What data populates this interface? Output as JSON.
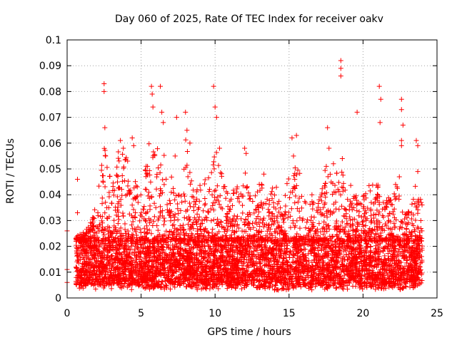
{
  "chart_data": {
    "type": "scatter",
    "title": "Day 060 of 2025, Rate Of TEC Index for receiver oakv",
    "xlabel": "GPS time / hours",
    "ylabel": "ROTI / TECUs",
    "xlim": [
      0,
      25
    ],
    "ylim": [
      0,
      0.1
    ],
    "grid": true,
    "marker": "+",
    "color": "#ff0000",
    "x_ticks": [
      0,
      5,
      10,
      15,
      20,
      25
    ],
    "x_tick_labels": [
      "0",
      "5",
      "10",
      "15",
      "20",
      "25"
    ],
    "y_ticks": [
      0,
      0.01,
      0.02,
      0.03,
      0.04,
      0.05,
      0.06,
      0.07,
      0.08,
      0.09,
      0.1
    ],
    "y_tick_labels": [
      "0",
      "0.01",
      "0.02",
      "0.03",
      "0.04",
      "0.05",
      "0.06",
      "0.07",
      "0.08",
      "0.09",
      "0.1"
    ],
    "series": [
      {
        "name": "ROTI",
        "x_range": [
          0,
          24
        ],
        "baseline_band": [
          0.005,
          0.022
        ],
        "notable_points": [
          {
            "x": 0.0,
            "y": 0.026
          },
          {
            "x": 0.0,
            "y": 0.011
          },
          {
            "x": 0.0,
            "y": 0.006
          },
          {
            "x": 0.7,
            "y": 0.046
          },
          {
            "x": 0.7,
            "y": 0.033
          },
          {
            "x": 2.5,
            "y": 0.083
          },
          {
            "x": 2.5,
            "y": 0.08
          },
          {
            "x": 2.55,
            "y": 0.066
          },
          {
            "x": 2.6,
            "y": 0.055
          },
          {
            "x": 3.6,
            "y": 0.061
          },
          {
            "x": 3.8,
            "y": 0.058
          },
          {
            "x": 4.4,
            "y": 0.062
          },
          {
            "x": 4.5,
            "y": 0.059
          },
          {
            "x": 5.7,
            "y": 0.082
          },
          {
            "x": 5.75,
            "y": 0.079
          },
          {
            "x": 5.8,
            "y": 0.074
          },
          {
            "x": 6.3,
            "y": 0.082
          },
          {
            "x": 6.4,
            "y": 0.072
          },
          {
            "x": 6.5,
            "y": 0.068
          },
          {
            "x": 7.3,
            "y": 0.055
          },
          {
            "x": 7.4,
            "y": 0.07
          },
          {
            "x": 8.0,
            "y": 0.072
          },
          {
            "x": 8.1,
            "y": 0.065
          },
          {
            "x": 8.3,
            "y": 0.06
          },
          {
            "x": 9.9,
            "y": 0.082
          },
          {
            "x": 10.0,
            "y": 0.074
          },
          {
            "x": 10.1,
            "y": 0.07
          },
          {
            "x": 10.3,
            "y": 0.058
          },
          {
            "x": 12.0,
            "y": 0.058
          },
          {
            "x": 12.1,
            "y": 0.056
          },
          {
            "x": 13.3,
            "y": 0.048
          },
          {
            "x": 15.2,
            "y": 0.062
          },
          {
            "x": 15.3,
            "y": 0.055
          },
          {
            "x": 15.5,
            "y": 0.063
          },
          {
            "x": 17.6,
            "y": 0.066
          },
          {
            "x": 17.7,
            "y": 0.058
          },
          {
            "x": 18.0,
            "y": 0.052
          },
          {
            "x": 18.5,
            "y": 0.092
          },
          {
            "x": 18.5,
            "y": 0.089
          },
          {
            "x": 18.5,
            "y": 0.086
          },
          {
            "x": 18.6,
            "y": 0.054
          },
          {
            "x": 19.6,
            "y": 0.072
          },
          {
            "x": 21.1,
            "y": 0.082
          },
          {
            "x": 21.2,
            "y": 0.077
          },
          {
            "x": 21.15,
            "y": 0.068
          },
          {
            "x": 22.2,
            "y": 0.044
          },
          {
            "x": 22.6,
            "y": 0.077
          },
          {
            "x": 22.6,
            "y": 0.073
          },
          {
            "x": 22.7,
            "y": 0.067
          },
          {
            "x": 22.6,
            "y": 0.061
          },
          {
            "x": 22.6,
            "y": 0.059
          },
          {
            "x": 23.6,
            "y": 0.061
          },
          {
            "x": 23.7,
            "y": 0.059
          },
          {
            "x": 23.7,
            "y": 0.049
          }
        ],
        "peak_envelope": [
          {
            "x": 0.6,
            "y": 0.024
          },
          {
            "x": 1.0,
            "y": 0.025
          },
          {
            "x": 1.5,
            "y": 0.028
          },
          {
            "x": 2.0,
            "y": 0.038
          },
          {
            "x": 2.5,
            "y": 0.06
          },
          {
            "x": 3.0,
            "y": 0.045
          },
          {
            "x": 3.5,
            "y": 0.058
          },
          {
            "x": 4.0,
            "y": 0.055
          },
          {
            "x": 4.5,
            "y": 0.05
          },
          {
            "x": 5.0,
            "y": 0.04
          },
          {
            "x": 5.5,
            "y": 0.06
          },
          {
            "x": 6.0,
            "y": 0.058
          },
          {
            "x": 6.5,
            "y": 0.06
          },
          {
            "x": 7.0,
            "y": 0.048
          },
          {
            "x": 7.5,
            "y": 0.045
          },
          {
            "x": 8.0,
            "y": 0.062
          },
          {
            "x": 8.5,
            "y": 0.042
          },
          {
            "x": 9.0,
            "y": 0.048
          },
          {
            "x": 9.5,
            "y": 0.045
          },
          {
            "x": 10.0,
            "y": 0.06
          },
          {
            "x": 10.5,
            "y": 0.048
          },
          {
            "x": 11.0,
            "y": 0.04
          },
          {
            "x": 11.5,
            "y": 0.045
          },
          {
            "x": 12.0,
            "y": 0.05
          },
          {
            "x": 12.5,
            "y": 0.038
          },
          {
            "x": 13.0,
            "y": 0.045
          },
          {
            "x": 13.5,
            "y": 0.042
          },
          {
            "x": 14.0,
            "y": 0.048
          },
          {
            "x": 14.5,
            "y": 0.042
          },
          {
            "x": 15.0,
            "y": 0.05
          },
          {
            "x": 15.5,
            "y": 0.055
          },
          {
            "x": 16.0,
            "y": 0.042
          },
          {
            "x": 16.5,
            "y": 0.04
          },
          {
            "x": 17.0,
            "y": 0.04
          },
          {
            "x": 17.5,
            "y": 0.052
          },
          {
            "x": 18.0,
            "y": 0.048
          },
          {
            "x": 18.5,
            "y": 0.05
          },
          {
            "x": 19.0,
            "y": 0.045
          },
          {
            "x": 19.5,
            "y": 0.042
          },
          {
            "x": 20.0,
            "y": 0.04
          },
          {
            "x": 20.5,
            "y": 0.045
          },
          {
            "x": 21.0,
            "y": 0.048
          },
          {
            "x": 21.5,
            "y": 0.04
          },
          {
            "x": 22.0,
            "y": 0.038
          },
          {
            "x": 22.5,
            "y": 0.05
          },
          {
            "x": 23.0,
            "y": 0.032
          },
          {
            "x": 23.5,
            "y": 0.045
          },
          {
            "x": 24.0,
            "y": 0.038
          }
        ]
      }
    ]
  }
}
